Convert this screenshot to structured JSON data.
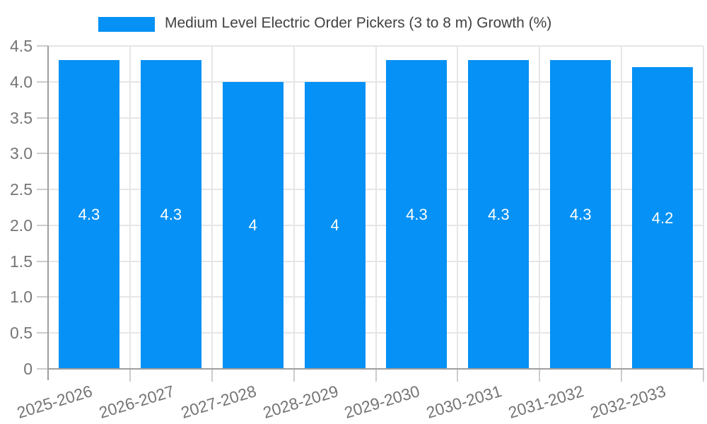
{
  "title": "Medium Level Electric Order Pickers (3 to 8 m) Growth (%)",
  "colors": {
    "bar": "#0591f5",
    "background": "#ffffff",
    "grid": "#e6e6e6",
    "axis": "#9e9e9e",
    "tick": "#cccccc",
    "tick_label": "#757575",
    "title_text": "#424242",
    "value_label": "#ffffff"
  },
  "chart_data": {
    "type": "bar",
    "title": "Medium Level Electric Order Pickers (3 to 8 m) Growth (%)",
    "legend": {
      "label": "Medium Level Electric Order Pickers (3 to 8 m) Growth (%)",
      "position": "top"
    },
    "categories": [
      "2025-2026",
      "2026-2027",
      "2027-2028",
      "2028-2029",
      "2029-2030",
      "2030-2031",
      "2031-2032",
      "2032-2033"
    ],
    "values": [
      4.3,
      4.3,
      4,
      4,
      4.3,
      4.3,
      4.3,
      4.2
    ],
    "value_labels": [
      "4.3",
      "4.3",
      "4",
      "4",
      "4.3",
      "4.3",
      "4.3",
      "4.2"
    ],
    "xlabel": "",
    "ylabel": "",
    "ylim": [
      0,
      4.5
    ],
    "ytick_values": [
      0,
      0.5,
      1.0,
      1.5,
      2.0,
      2.5,
      3.0,
      3.5,
      4.0,
      4.5
    ],
    "ytick_labels": [
      "0",
      "0.5",
      "1.0",
      "1.5",
      "2.0",
      "2.5",
      "3.0",
      "3.5",
      "4.0",
      "4.5"
    ],
    "grid": true
  }
}
